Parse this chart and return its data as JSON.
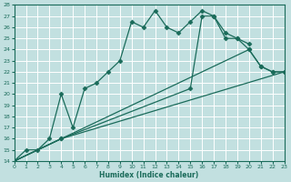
{
  "xlabel": "Humidex (Indice chaleur)",
  "bg_color": "#c2e0e0",
  "grid_color": "#ffffff",
  "line_color": "#1a6b5a",
  "ylim": [
    14,
    28
  ],
  "xlim": [
    0,
    23
  ],
  "yticks": [
    14,
    15,
    16,
    17,
    18,
    19,
    20,
    21,
    22,
    23,
    24,
    25,
    26,
    27,
    28
  ],
  "xticks": [
    0,
    1,
    2,
    3,
    4,
    5,
    6,
    7,
    8,
    9,
    10,
    11,
    12,
    13,
    14,
    15,
    16,
    17,
    18,
    19,
    20,
    21,
    22,
    23
  ],
  "series": [
    {
      "x": [
        0,
        1,
        2,
        3,
        4,
        5,
        6,
        7,
        8,
        9,
        10,
        11,
        12,
        13,
        14,
        15,
        16,
        17,
        18,
        19,
        20
      ],
      "y": [
        14,
        15,
        15,
        16,
        20,
        17,
        20.5,
        21,
        22,
        23,
        26.5,
        26,
        27.5,
        26,
        25.5,
        26.5,
        27.5,
        27,
        25,
        25,
        24.5
      ],
      "marker": "D",
      "markersize": 2.5,
      "has_line": true
    },
    {
      "x": [
        0,
        4,
        23
      ],
      "y": [
        14,
        16,
        22
      ],
      "marker": null,
      "markersize": 0,
      "has_line": true
    },
    {
      "x": [
        0,
        4,
        20,
        21,
        22,
        23
      ],
      "y": [
        14,
        16,
        24,
        22.5,
        22,
        22
      ],
      "marker": "D",
      "markersize": 2.5,
      "has_line": true
    },
    {
      "x": [
        0,
        4,
        15,
        16,
        17,
        18,
        19,
        20,
        21,
        22,
        23
      ],
      "y": [
        14,
        16,
        20.5,
        27,
        27,
        25.5,
        25,
        24,
        22.5,
        22,
        22
      ],
      "marker": "D",
      "markersize": 2.5,
      "has_line": true
    }
  ]
}
